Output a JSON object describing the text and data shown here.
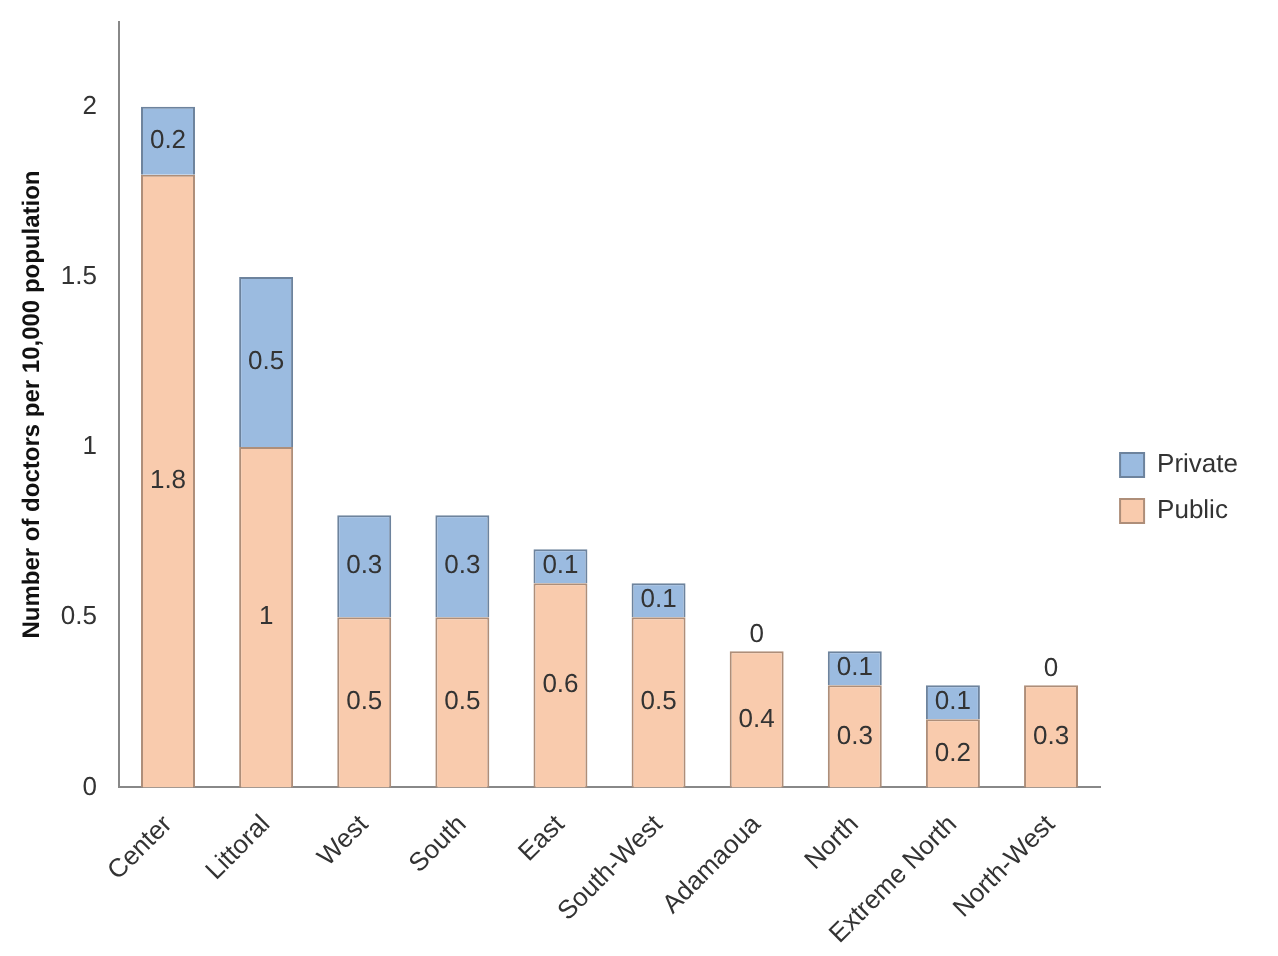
{
  "chart_data": {
    "type": "bar",
    "stacked": true,
    "ylabel": "Number of doctors per 10,000 population",
    "categories": [
      "Center",
      "Littoral",
      "West",
      "South",
      "East",
      "South-West",
      "Adamaoua",
      "North",
      "Extreme North",
      "North-West"
    ],
    "series": [
      {
        "name": "Public",
        "color": "#f9cbad",
        "values": [
          1.8,
          1,
          0.5,
          0.5,
          0.6,
          0.5,
          0.4,
          0.3,
          0.2,
          0.3
        ]
      },
      {
        "name": "Private",
        "color": "#9bbbe0",
        "values": [
          0.2,
          0.5,
          0.3,
          0.3,
          0.1,
          0.1,
          0,
          0.1,
          0.1,
          0
        ]
      }
    ],
    "ylim": [
      0,
      2.25
    ],
    "yticks": [
      0,
      0.5,
      1,
      1.5,
      2
    ],
    "grid": false,
    "legend": "right",
    "data_labels": true
  }
}
